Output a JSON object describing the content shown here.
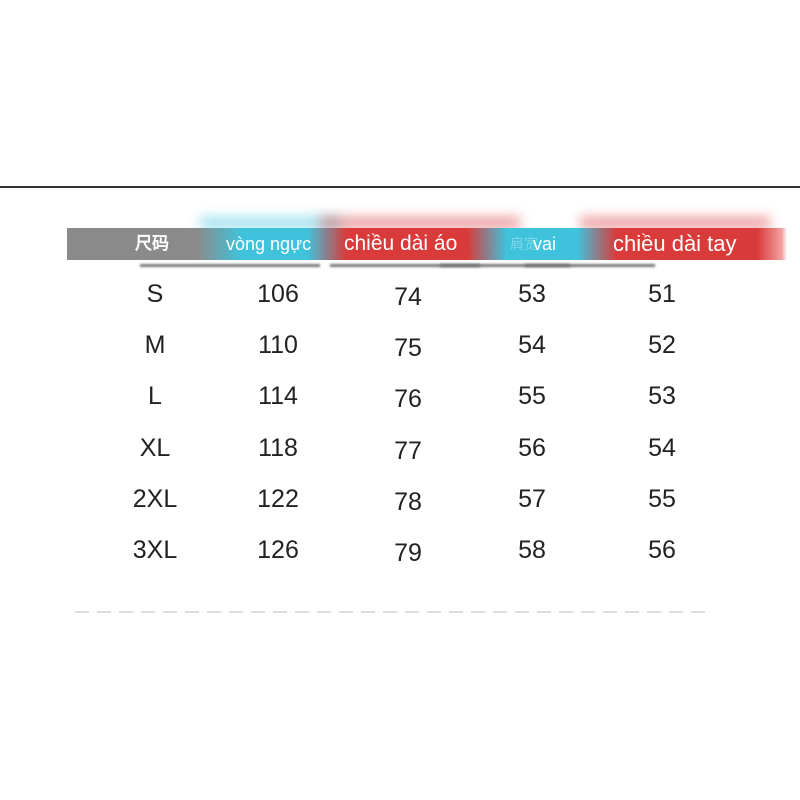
{
  "header": {
    "size": "尺码",
    "chest": "vòng ngực",
    "length": "chiều dài áo",
    "shoulder_faint": "肩宽",
    "shoulder": "vai",
    "sleeve": "chiều dài tay"
  },
  "colors": {
    "gray": "#8a8a8a",
    "cyan": "#3fc3dc",
    "red": "#d93a3a"
  },
  "rows": [
    {
      "size": "S",
      "chest": "106",
      "length": "74",
      "shoulder": "53",
      "sleeve": "51"
    },
    {
      "size": "M",
      "chest": "110",
      "length": "75",
      "shoulder": "54",
      "sleeve": "52"
    },
    {
      "size": "L",
      "chest": "114",
      "length": "76",
      "shoulder": "55",
      "sleeve": "53"
    },
    {
      "size": "XL",
      "chest": "118",
      "length": "77",
      "shoulder": "56",
      "sleeve": "54"
    },
    {
      "size": "2XL",
      "chest": "122",
      "length": "78",
      "shoulder": "57",
      "sleeve": "55"
    },
    {
      "size": "3XL",
      "chest": "126",
      "length": "79",
      "shoulder": "58",
      "sleeve": "56"
    }
  ]
}
